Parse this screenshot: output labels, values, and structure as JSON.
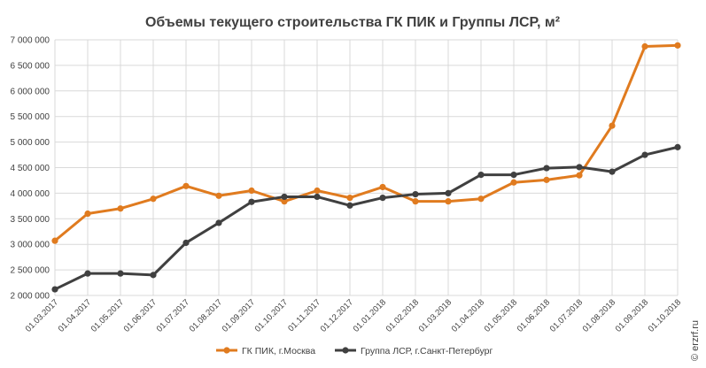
{
  "chart_data": {
    "type": "line",
    "title": "Объемы текущего строительства ГК ПИК и Группы ЛСР, м²",
    "xlabel": "",
    "ylabel": "",
    "ylim": [
      2000000,
      7000000
    ],
    "yticks": [
      2000000,
      2500000,
      3000000,
      3500000,
      4000000,
      4500000,
      5000000,
      5500000,
      6000000,
      6500000,
      7000000
    ],
    "ytick_labels": [
      "2 000 000",
      "2 500 000",
      "3 000 000",
      "3 500 000",
      "4 000 000",
      "4 500 000",
      "5 000 000",
      "5 500 000",
      "6 000 000",
      "6 500 000",
      "7 000 000"
    ],
    "categories": [
      "01.03.2017",
      "01.04.2017",
      "01.05.2017",
      "01.06.2017",
      "01.07.2017",
      "01.08.2017",
      "01.09.2017",
      "01.10.2017",
      "01.11.2017",
      "01.12.2017",
      "01.01.2018",
      "01.02.2018",
      "01.03.2018",
      "01.04.2018",
      "01.05.2018",
      "01.06.2018",
      "01.07.2018",
      "01.08.2018",
      "01.09.2018",
      "01.10.2018"
    ],
    "series": [
      {
        "name": "ГК ПИК, г.Москва",
        "color": "#e07b1f",
        "values": [
          3070000,
          3600000,
          3700000,
          3890000,
          4140000,
          3950000,
          4050000,
          3840000,
          4050000,
          3910000,
          4120000,
          3840000,
          3840000,
          3890000,
          4210000,
          4260000,
          4350000,
          5320000,
          6870000,
          6890000
        ]
      },
      {
        "name": "Группа ЛСР, г.Санкт-Петербург",
        "color": "#404040",
        "values": [
          2120000,
          2430000,
          2430000,
          2400000,
          3030000,
          3420000,
          3830000,
          3930000,
          3930000,
          3760000,
          3910000,
          3980000,
          4000000,
          4360000,
          4360000,
          4490000,
          4510000,
          4420000,
          4750000,
          4900000
        ]
      }
    ],
    "grid": true,
    "legend": "bottom"
  },
  "watermark": "© erzrf.ru"
}
